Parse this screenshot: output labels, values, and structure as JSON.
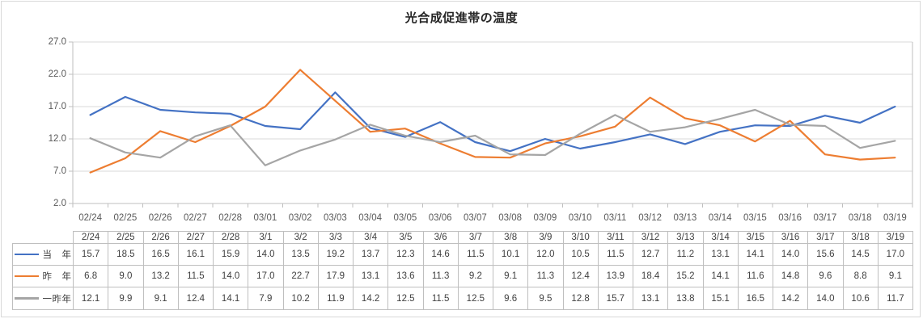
{
  "chart_data": {
    "type": "line",
    "title": "光合成促進帯の温度",
    "x_axis_labels": [
      "02/24",
      "02/25",
      "02/26",
      "02/27",
      "02/28",
      "03/01",
      "03/02",
      "03/03",
      "03/04",
      "03/05",
      "03/06",
      "03/07",
      "03/08",
      "03/09",
      "03/10",
      "03/11",
      "03/12",
      "03/13",
      "03/14",
      "03/15",
      "03/16",
      "03/17",
      "03/18",
      "03/19"
    ],
    "table_dates": [
      "2/24",
      "2/25",
      "2/26",
      "2/27",
      "2/28",
      "3/1",
      "3/2",
      "3/3",
      "3/4",
      "3/5",
      "3/6",
      "3/7",
      "3/8",
      "3/9",
      "3/10",
      "3/11",
      "3/12",
      "3/13",
      "3/14",
      "3/15",
      "3/16",
      "3/17",
      "3/18",
      "3/19"
    ],
    "series": [
      {
        "id": "current-year",
        "name": "当　年",
        "color": "#4472C4",
        "values": [
          15.7,
          18.5,
          16.5,
          16.1,
          15.9,
          14.0,
          13.5,
          19.2,
          13.7,
          12.3,
          14.6,
          11.5,
          10.1,
          12.0,
          10.5,
          11.5,
          12.7,
          11.2,
          13.1,
          14.1,
          14.0,
          15.6,
          14.5,
          17.0
        ]
      },
      {
        "id": "last-year",
        "name": "昨　年",
        "color": "#ED7D31",
        "values": [
          6.8,
          9.0,
          13.2,
          11.5,
          14.0,
          17.0,
          22.7,
          17.9,
          13.1,
          13.6,
          11.3,
          9.2,
          9.1,
          11.3,
          12.4,
          13.9,
          18.4,
          15.2,
          14.1,
          11.6,
          14.8,
          9.6,
          8.8,
          9.1
        ]
      },
      {
        "id": "two-years-ago",
        "name": "一昨年",
        "color": "#A5A5A5",
        "values": [
          12.1,
          9.9,
          9.1,
          12.4,
          14.1,
          7.9,
          10.2,
          11.9,
          14.2,
          12.5,
          11.5,
          12.5,
          9.6,
          9.5,
          12.8,
          15.7,
          13.1,
          13.8,
          15.1,
          16.5,
          14.2,
          14.0,
          10.6,
          11.7
        ]
      }
    ],
    "y_ticks": [
      27.0,
      22.0,
      17.0,
      12.0,
      7.0,
      2.0
    ],
    "y_tick_labels": [
      "27.0",
      "22.0",
      "17.0",
      "12.0",
      "7.0",
      "2.0"
    ],
    "ylim": [
      2,
      27
    ],
    "xlabel": "",
    "ylabel": "",
    "grid": "horizontal",
    "legend_position": "data-table-left",
    "colors": {
      "gridline": "#D9D9D9",
      "axis": "#BFBFBF",
      "chart_border": "#D9D9D9",
      "table_border": "#BFBFBF",
      "tick_label": "#595959",
      "table_text": "#404040",
      "title_text": "#262626",
      "background": "#FFFFFF"
    }
  }
}
